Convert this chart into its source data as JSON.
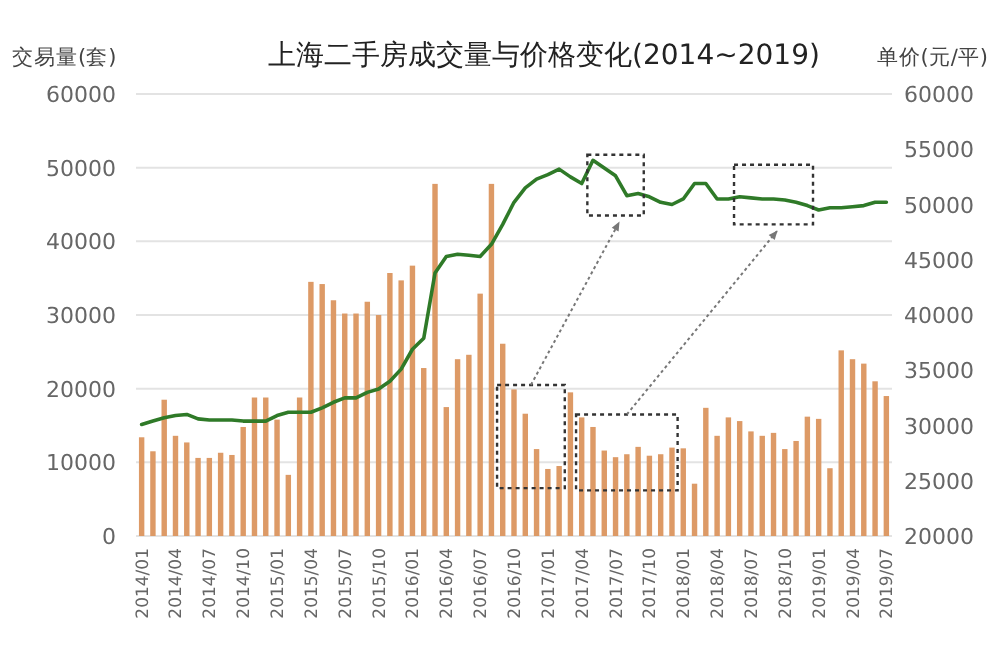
{
  "chart_data": {
    "type": "bar",
    "title": "上海二手房成交量与价格变化(2014~2019)",
    "ylabel": "交易量(套)",
    "y2label": "单价(元/平)",
    "categories": [
      "2014/01",
      null,
      null,
      "2014/04",
      null,
      null,
      "2014/07",
      null,
      null,
      "2014/10",
      null,
      null,
      "2015/01",
      null,
      null,
      "2015/04",
      null,
      null,
      "2015/07",
      null,
      null,
      "2015/10",
      null,
      null,
      "2016/01",
      null,
      null,
      "2016/04",
      null,
      null,
      "2016/07",
      null,
      null,
      "2016/10",
      null,
      null,
      "2017/01",
      null,
      null,
      "2017/04",
      null,
      null,
      "2017/07",
      null,
      null,
      "2017/10",
      null,
      null,
      "2018/01",
      null,
      null,
      "2018/04",
      null,
      null,
      "2018/07",
      null,
      null,
      "2018/10",
      null,
      null,
      "2019/01",
      null,
      null,
      "2019/04",
      null,
      null,
      "2019/07"
    ],
    "series": [
      {
        "color": "#dd9a66",
        "values": [
          13400,
          11500,
          18500,
          13600,
          12700,
          10600,
          10600,
          11300,
          11000,
          14800,
          18800,
          18800,
          15800,
          8300,
          18800,
          34500,
          34200,
          32000,
          30200,
          30200,
          31800,
          30000,
          35700,
          34700,
          36700,
          22800,
          47800,
          17500,
          24000,
          24600,
          32900,
          47800,
          26100,
          19900,
          16600,
          11800,
          9100,
          9500,
          19500,
          16100,
          14800,
          11600,
          10700,
          11100,
          12100,
          10900,
          11100,
          12000,
          11900,
          7100,
          17400,
          13600,
          16100,
          15600,
          14200,
          13600,
          14000,
          11800,
          12900,
          16200,
          15900,
          9200,
          25200,
          24000,
          23400,
          21000,
          19000
        ]
      },
      {
        "type": "line",
        "axis": "y2",
        "color": "#2f7a28",
        "values": [
          30100,
          30400,
          30700,
          30900,
          31000,
          30600,
          30500,
          30500,
          30500,
          30400,
          30400,
          30400,
          30900,
          31200,
          31200,
          31200,
          31600,
          32100,
          32500,
          32500,
          33000,
          33300,
          34000,
          35100,
          36900,
          37900,
          43800,
          45300,
          45500,
          45400,
          45300,
          46400,
          48200,
          50200,
          51500,
          52300,
          52700,
          53200,
          52500,
          51900,
          54000,
          53300,
          52600,
          50800,
          51000,
          50700,
          50200,
          50000,
          50500,
          51900,
          51900,
          50500,
          50500,
          50700,
          50600,
          50500,
          50500,
          50400,
          50200,
          49900,
          49500,
          49700,
          49700,
          49800,
          49900,
          50200,
          50200
        ]
      }
    ],
    "ylim": [
      0,
      60000
    ],
    "yticks": [
      0,
      10000,
      20000,
      30000,
      40000,
      50000,
      60000
    ],
    "y2lim": [
      20000,
      60000
    ],
    "y2ticks": [
      20000,
      25000,
      30000,
      35000,
      40000,
      45000,
      50000,
      55000,
      60000
    ],
    "grid": "y"
  }
}
